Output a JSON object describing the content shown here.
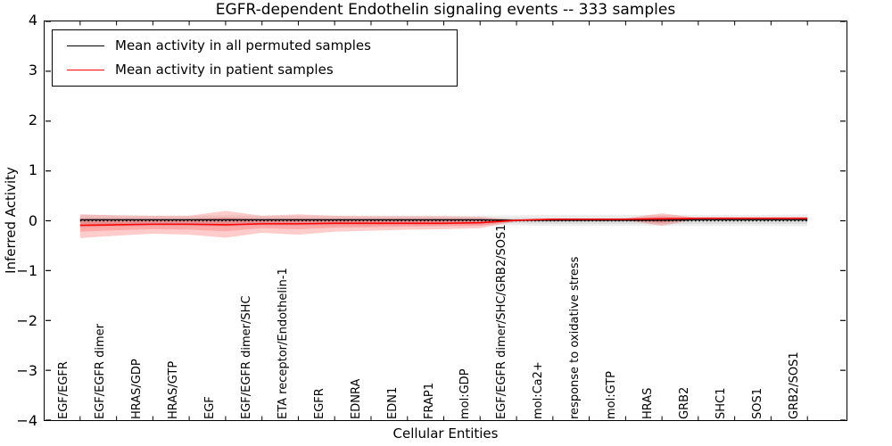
{
  "title": "EGFR-dependent Endothelin signaling events -- 333 samples",
  "axes": {
    "xlabel": "Cellular Entities",
    "ylabel": "Inferred Activity",
    "yticks": [
      4,
      3,
      2,
      1,
      0,
      -1,
      -2,
      -3,
      -4
    ],
    "ylim": [
      -4,
      4
    ]
  },
  "legend": {
    "position": "upper left",
    "items": [
      {
        "label": "Mean activity in all permuted samples",
        "color": "#000000"
      },
      {
        "label": "Mean activity in patient samples",
        "color": "#ff0000"
      }
    ]
  },
  "chart_data": {
    "type": "line",
    "title": "EGFR-dependent Endothelin signaling events -- 333 samples",
    "xlabel": "Cellular Entities",
    "ylabel": "Inferred Activity",
    "ylim": [
      -4,
      4
    ],
    "grid": false,
    "legend_position": "upper left",
    "categories": [
      "EGF/EGFR",
      "EGF/EGFR dimer",
      "HRAS/GDP",
      "HRAS/GTP",
      "EGF",
      "EGF/EGFR dimer/SHC",
      "ETA receptor/Endothelin-1",
      "EGFR",
      "EDNRA",
      "EDN1",
      "FRAP1",
      "mol:GDP",
      "EGF/EGFR dimer/SHC/GRB2/SOS1",
      "mol:Ca2+",
      "response to oxidative stress",
      "mol:GTP",
      "HRAS",
      "GRB2",
      "SHC1",
      "SOS1",
      "GRB2/SOS1"
    ],
    "bands": [
      {
        "name": "permuted-band-outer",
        "color": "#000000",
        "opacity": 0.07,
        "upper": [
          0.12,
          0.11,
          0.1,
          0.1,
          0.11,
          0.1,
          0.1,
          0.1,
          0.1,
          0.1,
          0.1,
          0.1,
          0.11,
          0.12,
          0.12,
          0.12,
          0.12,
          0.12,
          0.12,
          0.12,
          0.13
        ],
        "lower": [
          -0.13,
          -0.12,
          -0.11,
          -0.11,
          -0.12,
          -0.1,
          -0.1,
          -0.1,
          -0.1,
          -0.09,
          -0.09,
          -0.09,
          -0.09,
          -0.1,
          -0.1,
          -0.1,
          -0.1,
          -0.1,
          -0.1,
          -0.1,
          -0.11
        ]
      },
      {
        "name": "permuted-band-inner",
        "color": "#000000",
        "opacity": 0.07,
        "upper": [
          0.06,
          0.06,
          0.05,
          0.05,
          0.06,
          0.05,
          0.05,
          0.05,
          0.05,
          0.05,
          0.05,
          0.05,
          0.06,
          0.06,
          0.06,
          0.06,
          0.06,
          0.06,
          0.06,
          0.06,
          0.07
        ],
        "lower": [
          -0.07,
          -0.06,
          -0.06,
          -0.06,
          -0.06,
          -0.05,
          -0.05,
          -0.05,
          -0.05,
          -0.05,
          -0.05,
          -0.05,
          -0.05,
          -0.06,
          -0.06,
          -0.06,
          -0.06,
          -0.06,
          -0.06,
          -0.06,
          -0.06
        ]
      },
      {
        "name": "patient-band-outer",
        "color": "#ff0000",
        "opacity": 0.2,
        "upper": [
          0.13,
          0.11,
          0.1,
          0.1,
          0.2,
          0.1,
          0.13,
          0.1,
          0.09,
          0.09,
          0.09,
          0.08,
          0.02,
          0.04,
          0.04,
          0.05,
          0.15,
          0.06,
          0.06,
          0.06,
          0.06
        ],
        "lower": [
          -0.35,
          -0.3,
          -0.26,
          -0.28,
          -0.34,
          -0.24,
          -0.28,
          -0.22,
          -0.2,
          -0.18,
          -0.17,
          -0.15,
          -0.01,
          0.02,
          0.02,
          0.01,
          -0.1,
          0.04,
          0.04,
          0.04,
          0.04
        ]
      },
      {
        "name": "patient-band-inner",
        "color": "#ff0000",
        "opacity": 0.17,
        "upper": [
          0.04,
          0.03,
          0.03,
          0.03,
          0.06,
          0.03,
          0.04,
          0.03,
          0.03,
          0.03,
          0.03,
          0.03,
          0.01,
          0.03,
          0.03,
          0.03,
          0.09,
          0.05,
          0.05,
          0.05,
          0.05
        ],
        "lower": [
          -0.22,
          -0.19,
          -0.17,
          -0.18,
          -0.21,
          -0.15,
          -0.17,
          -0.14,
          -0.13,
          -0.12,
          -0.11,
          -0.1,
          0.0,
          0.02,
          0.02,
          0.02,
          -0.04,
          0.04,
          0.04,
          0.04,
          0.04
        ]
      }
    ],
    "series": [
      {
        "name": "zero-reference",
        "color": "#000000",
        "style": "dotted",
        "width": 1.4,
        "values": [
          0,
          0,
          0,
          0,
          0,
          0,
          0,
          0,
          0,
          0,
          0,
          0,
          0,
          0,
          0,
          0,
          0,
          0,
          0,
          0,
          0
        ]
      },
      {
        "name": "Mean activity in all permuted samples",
        "color": "#000000",
        "style": "solid",
        "width": 1.4,
        "values": [
          0.02,
          0.02,
          0.02,
          0.02,
          0.02,
          0.02,
          0.02,
          0.02,
          0.02,
          0.02,
          0.02,
          0.02,
          0.01,
          0.01,
          0.01,
          0.01,
          0.01,
          0.02,
          0.02,
          0.02,
          0.02
        ]
      },
      {
        "name": "Mean activity in patient samples",
        "color": "#ff0000",
        "style": "solid",
        "width": 1.6,
        "values": [
          -0.09,
          -0.08,
          -0.07,
          -0.07,
          -0.08,
          -0.06,
          -0.06,
          -0.05,
          -0.05,
          -0.05,
          -0.05,
          -0.04,
          0.01,
          0.03,
          0.03,
          0.03,
          0.04,
          0.05,
          0.05,
          0.05,
          0.05
        ]
      }
    ]
  }
}
